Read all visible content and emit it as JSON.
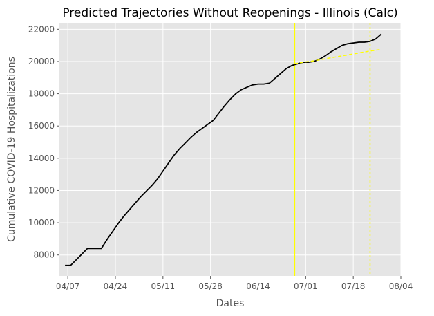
{
  "chart_data": {
    "type": "line",
    "title": "Predicted Trajectories Without Reopenings - Illinois (Calc)",
    "xlabel": "Dates",
    "ylabel": "Cumulative COVID-19 Hospitalizations",
    "x_ticks": [
      "04/07",
      "04/24",
      "05/11",
      "05/28",
      "06/14",
      "07/01",
      "07/18",
      "08/04"
    ],
    "y_ticks": [
      8000,
      10000,
      12000,
      14000,
      16000,
      18000,
      20000,
      22000
    ],
    "xlim": [
      "2020-04-04",
      "2020-08-04"
    ],
    "ylim": [
      6700,
      22400
    ],
    "grid": true,
    "colors": {
      "background": "#e5e5e5",
      "grid": "#ffffff",
      "observed": "#000000",
      "prediction": "#ffff00"
    },
    "vertical_lines": [
      {
        "date": "2020-06-27",
        "style": "solid"
      },
      {
        "date": "2020-07-24",
        "style": "dotted"
      }
    ],
    "series": [
      {
        "style": "solid",
        "color": "#000000",
        "x": [
          "2020-04-06",
          "2020-04-08",
          "2020-04-10",
          "2020-04-12",
          "2020-04-14",
          "2020-04-17",
          "2020-04-19",
          "2020-04-21",
          "2020-04-23",
          "2020-04-25",
          "2020-04-27",
          "2020-04-29",
          "2020-05-01",
          "2020-05-03",
          "2020-05-05",
          "2020-05-07",
          "2020-05-09",
          "2020-05-11",
          "2020-05-13",
          "2020-05-15",
          "2020-05-17",
          "2020-05-19",
          "2020-05-21",
          "2020-05-23",
          "2020-05-25",
          "2020-05-27",
          "2020-05-29",
          "2020-05-31",
          "2020-06-02",
          "2020-06-04",
          "2020-06-06",
          "2020-06-08",
          "2020-06-10",
          "2020-06-12",
          "2020-06-14",
          "2020-06-16",
          "2020-06-18",
          "2020-06-20",
          "2020-06-22",
          "2020-06-24",
          "2020-06-26",
          "2020-06-28",
          "2020-06-30",
          "2020-07-02",
          "2020-07-04",
          "2020-07-06",
          "2020-07-08",
          "2020-07-10",
          "2020-07-12",
          "2020-07-14",
          "2020-07-16",
          "2020-07-18",
          "2020-07-20",
          "2020-07-22",
          "2020-07-24",
          "2020-07-26",
          "2020-07-28"
        ],
        "y": [
          7350,
          7350,
          7700,
          8050,
          8400,
          8400,
          8400,
          8950,
          9450,
          9950,
          10400,
          10800,
          11200,
          11600,
          11950,
          12300,
          12700,
          13200,
          13700,
          14200,
          14600,
          14950,
          15300,
          15600,
          15850,
          16100,
          16350,
          16800,
          17250,
          17650,
          18000,
          18250,
          18400,
          18550,
          18600,
          18600,
          18650,
          18950,
          19250,
          19550,
          19750,
          19850,
          19950,
          19950,
          20000,
          20150,
          20350,
          20600,
          20800,
          21000,
          21100,
          21150,
          21200,
          21200,
          21250,
          21400,
          21700
        ]
      },
      {
        "style": "dashed",
        "color": "#ffff00",
        "x": [
          "2020-06-27",
          "2020-06-30",
          "2020-07-03",
          "2020-07-06",
          "2020-07-09",
          "2020-07-12",
          "2020-07-15",
          "2020-07-18",
          "2020-07-21",
          "2020-07-24",
          "2020-07-28"
        ],
        "y": [
          19850,
          19950,
          20020,
          20100,
          20200,
          20290,
          20380,
          20470,
          20560,
          20650,
          20750
        ]
      }
    ]
  }
}
